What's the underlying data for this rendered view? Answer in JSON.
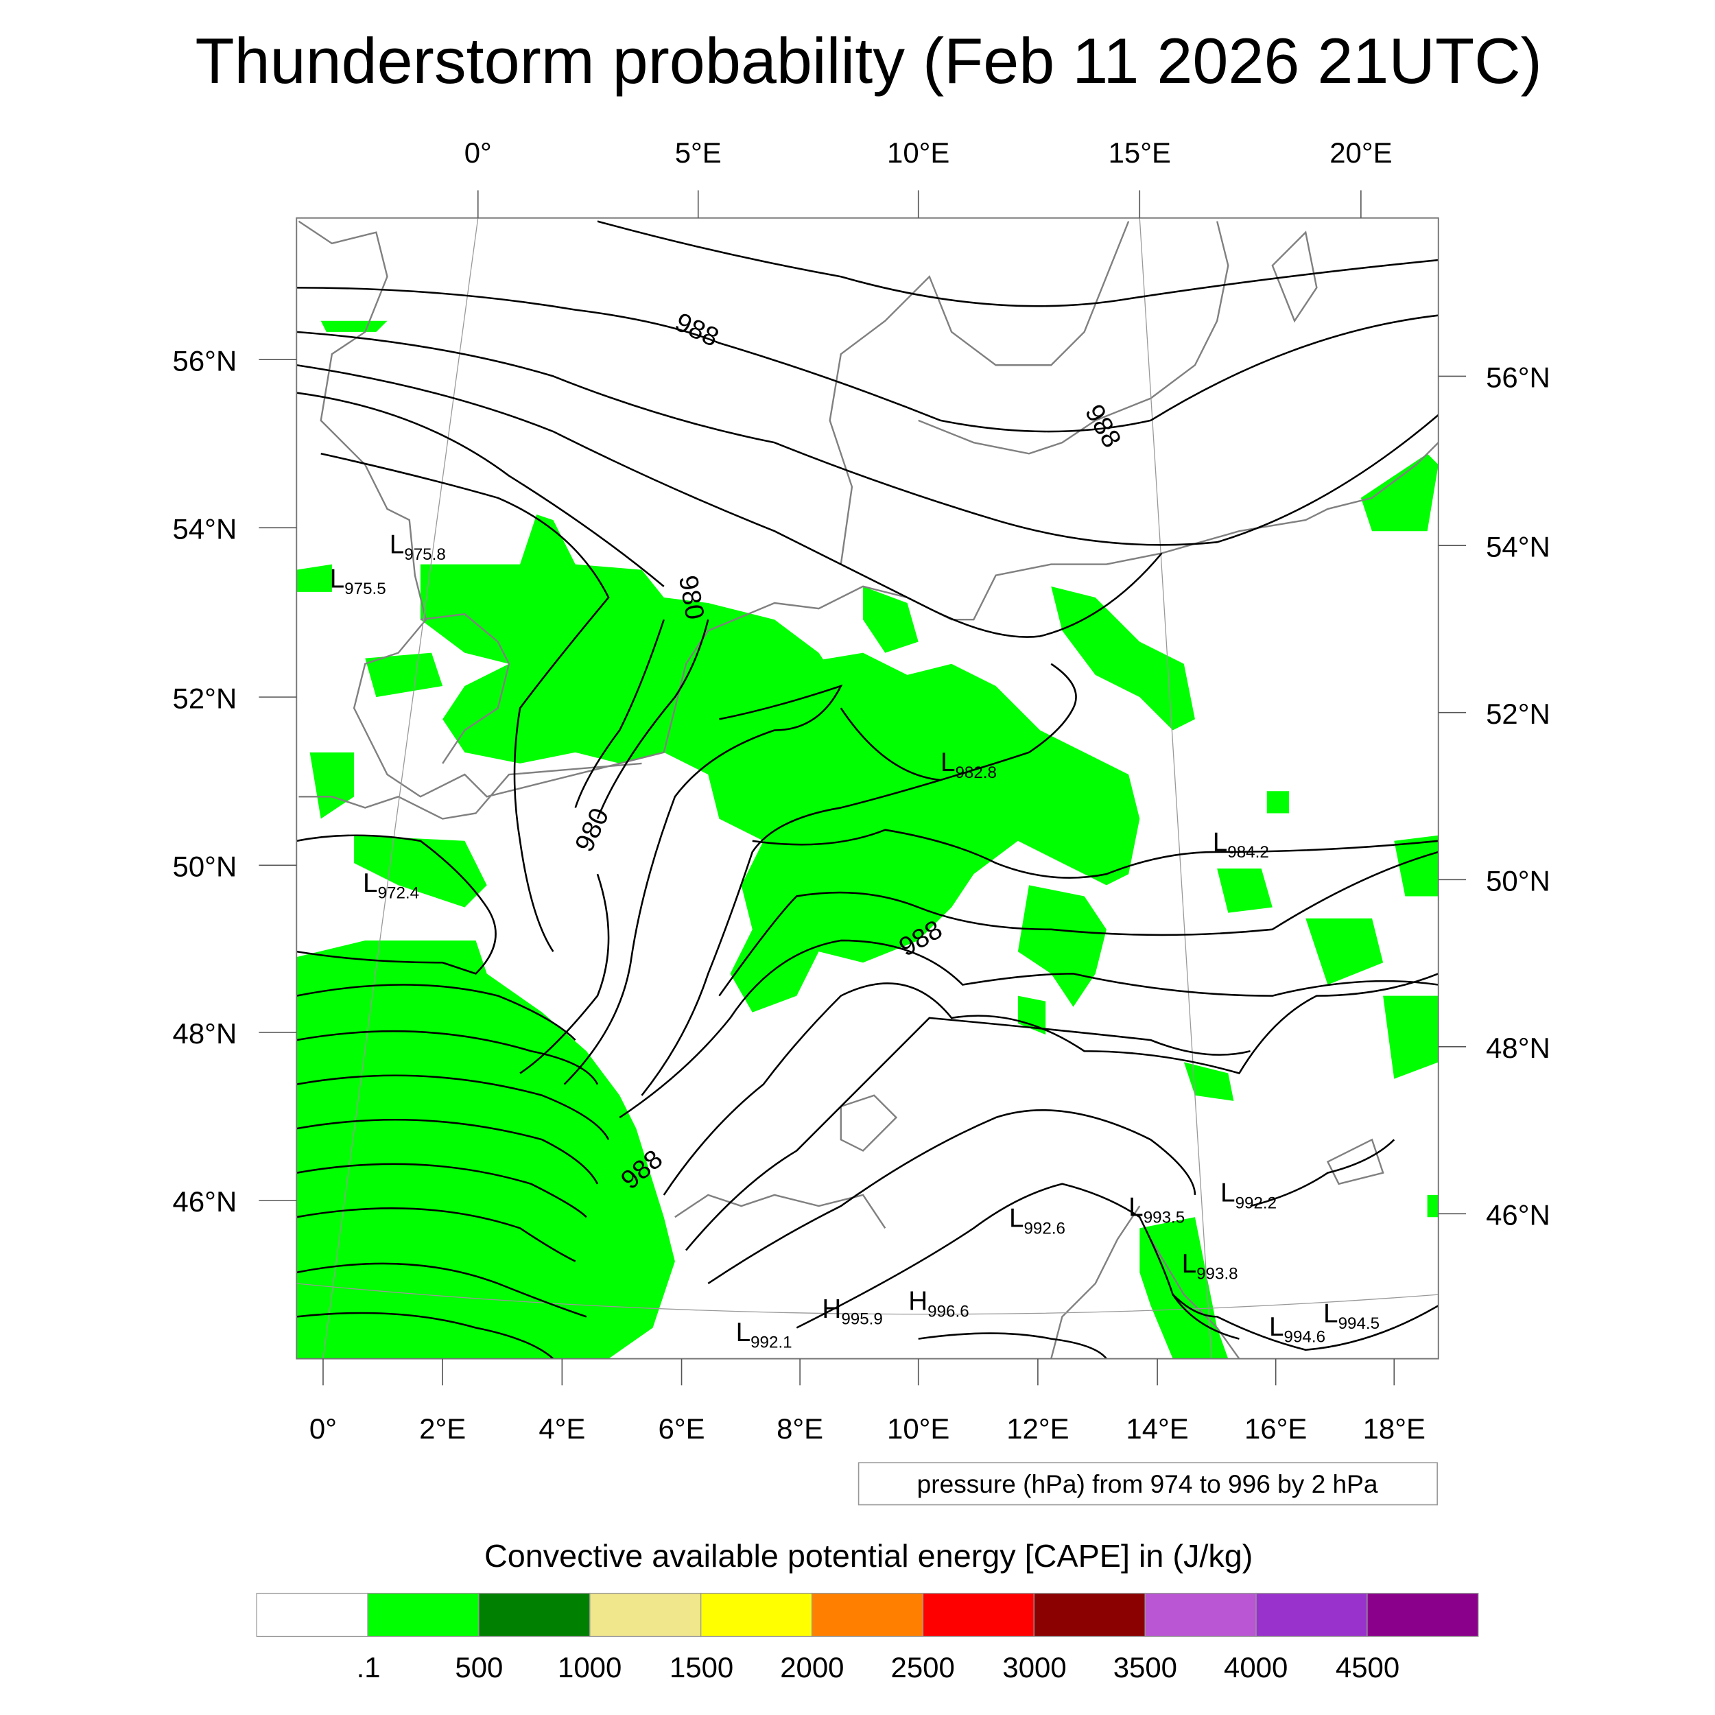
{
  "title": "Thunderstorm probability (Feb 11 2026 21UTC)",
  "top_lon_labels": [
    "0°",
    "5°E",
    "10°E",
    "15°E",
    "20°E"
  ],
  "bottom_lon_labels": [
    "0°",
    "2°E",
    "4°E",
    "6°E",
    "8°E",
    "10°E",
    "12°E",
    "14°E",
    "16°E",
    "18°E"
  ],
  "left_lat_labels": [
    "56°N",
    "54°N",
    "52°N",
    "50°N",
    "48°N",
    "46°N"
  ],
  "right_lat_labels": [
    "56°N",
    "54°N",
    "52°N",
    "50°N",
    "48°N",
    "46°N"
  ],
  "contour_labels": [
    "988",
    "988",
    "980",
    "980",
    "988",
    "988"
  ],
  "pressure_centers": [
    {
      "type": "L",
      "value": "975.8"
    },
    {
      "type": "L",
      "value": "975.5"
    },
    {
      "type": "L",
      "value": "972.4"
    },
    {
      "type": "L",
      "value": "982.8"
    },
    {
      "type": "L",
      "value": "984.2"
    },
    {
      "type": "L",
      "value": "992.6"
    },
    {
      "type": "L",
      "value": "993.5"
    },
    {
      "type": "L",
      "value": "992.2"
    },
    {
      "type": "L",
      "value": "993.8"
    },
    {
      "type": "L",
      "value": "994.6"
    },
    {
      "type": "L",
      "value": "994.5"
    },
    {
      "type": "L",
      "value": "992.1"
    },
    {
      "type": "H",
      "value": "995.9"
    },
    {
      "type": "H",
      "value": "996.6"
    }
  ],
  "contour_legend": "pressure (hPa) from 974 to 996 by 2 hPa",
  "colorbar": {
    "title": "Convective available potential energy [CAPE] in (J/kg)",
    "colors": [
      "#ffffff",
      "#00ff00",
      "#008000",
      "#f0e68c",
      "#ffff00",
      "#ff8000",
      "#ff0000",
      "#8b0000",
      "#ba55d3",
      "#9932cc",
      "#8b008b"
    ],
    "labels": [
      ".1",
      "500",
      "1000",
      "1500",
      "2000",
      "2500",
      "3000",
      "3500",
      "4000",
      "4500"
    ]
  }
}
